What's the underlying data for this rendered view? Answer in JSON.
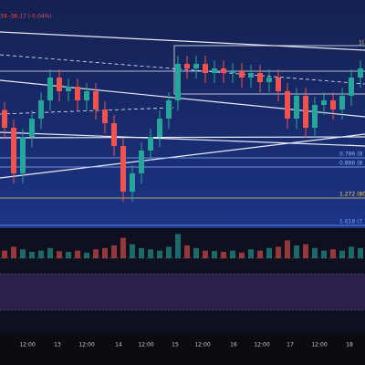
{
  "chart_data": {
    "type": "candlestick",
    "header": "34 -36.17 (-0.04%)",
    "corner_label": "1(",
    "open": [
      82300,
      81864,
      80744,
      81640,
      82088,
      82536,
      83096,
      82760,
      82872,
      82536,
      82760,
      82312,
      81976,
      81416,
      80296,
      80744,
      81304,
      81640,
      82088,
      82536,
      83432,
      83320,
      83432,
      83208,
      83320,
      83208,
      83253,
      83096,
      83208,
      82984,
      83096,
      82760,
      82088,
      82648,
      81864,
      82424,
      82536,
      82312,
      82648,
      83096
    ],
    "high": [
      82500,
      82064,
      81840,
      82288,
      82736,
      83296,
      83296,
      83072,
      83072,
      82960,
      82960,
      82512,
      82176,
      81616,
      80944,
      81504,
      81840,
      82288,
      82736,
      83632,
      83632,
      83632,
      83632,
      83520,
      83520,
      83453,
      83453,
      83408,
      83408,
      83296,
      83296,
      82960,
      82848,
      82848,
      82624,
      82736,
      82736,
      82848,
      83296,
      83520
    ],
    "low": [
      81614,
      80494,
      80494,
      81390,
      81838,
      82286,
      82510,
      82510,
      82286,
      82286,
      82062,
      81726,
      81166,
      80046,
      80046,
      80494,
      81054,
      81390,
      81838,
      82286,
      83070,
      83070,
      82958,
      82958,
      82958,
      82958,
      82846,
      82846,
      82734,
      82734,
      82510,
      81838,
      81838,
      81614,
      81614,
      82174,
      82062,
      82062,
      82398,
      82846
    ],
    "close": [
      81864,
      80744,
      81640,
      82088,
      82536,
      83096,
      82760,
      82872,
      82536,
      82760,
      82312,
      81976,
      81416,
      80296,
      80744,
      81304,
      81640,
      82088,
      82536,
      83432,
      83320,
      83432,
      83208,
      83320,
      83208,
      83253,
      83096,
      83208,
      82984,
      83096,
      82760,
      82088,
      82648,
      81864,
      82424,
      82536,
      82312,
      82648,
      83096,
      83320
    ],
    "volume": [
      30,
      45,
      35,
      25,
      30,
      40,
      28,
      25,
      30,
      22,
      35,
      40,
      50,
      80,
      55,
      40,
      35,
      30,
      45,
      95,
      50,
      40,
      30,
      28,
      25,
      30,
      22,
      35,
      30,
      40,
      45,
      70,
      50,
      55,
      40,
      30,
      35,
      30,
      45,
      40
    ],
    "up_color": "#26a69a",
    "down_color": "#ef5350",
    "ylim": [
      79400,
      85000
    ],
    "vlim": [
      0,
      100
    ],
    "xlim": [
      -0.5,
      39.5
    ],
    "xticks": [
      {
        "value": 2.5,
        "label": "12:00"
      },
      {
        "value": 5.8,
        "label": "13"
      },
      {
        "value": 9,
        "label": "12:00"
      },
      {
        "value": 12.5,
        "label": "14"
      },
      {
        "value": 15.5,
        "label": "12:00"
      },
      {
        "value": 18.7,
        "label": "15"
      },
      {
        "value": 21.7,
        "label": "12:00"
      },
      {
        "value": 25.1,
        "label": "16"
      },
      {
        "value": 28.2,
        "label": "12:00"
      },
      {
        "value": 31.3,
        "label": "17"
      },
      {
        "value": 34.5,
        "label": "12:00"
      },
      {
        "value": 37.8,
        "label": "18"
      }
    ],
    "levels": [
      {
        "label": "0.786 (8",
        "value": 81125,
        "color": "#8fb4ff"
      },
      {
        "label": "0.886 (8",
        "value": 80901,
        "color": "#8fb4ff"
      },
      {
        "label": "1.272 (80",
        "value": 80139,
        "color": "#f3d36b"
      },
      {
        "label": "1.618 (7",
        "value": 79467,
        "color": "#6fa0ff"
      }
    ]
  }
}
